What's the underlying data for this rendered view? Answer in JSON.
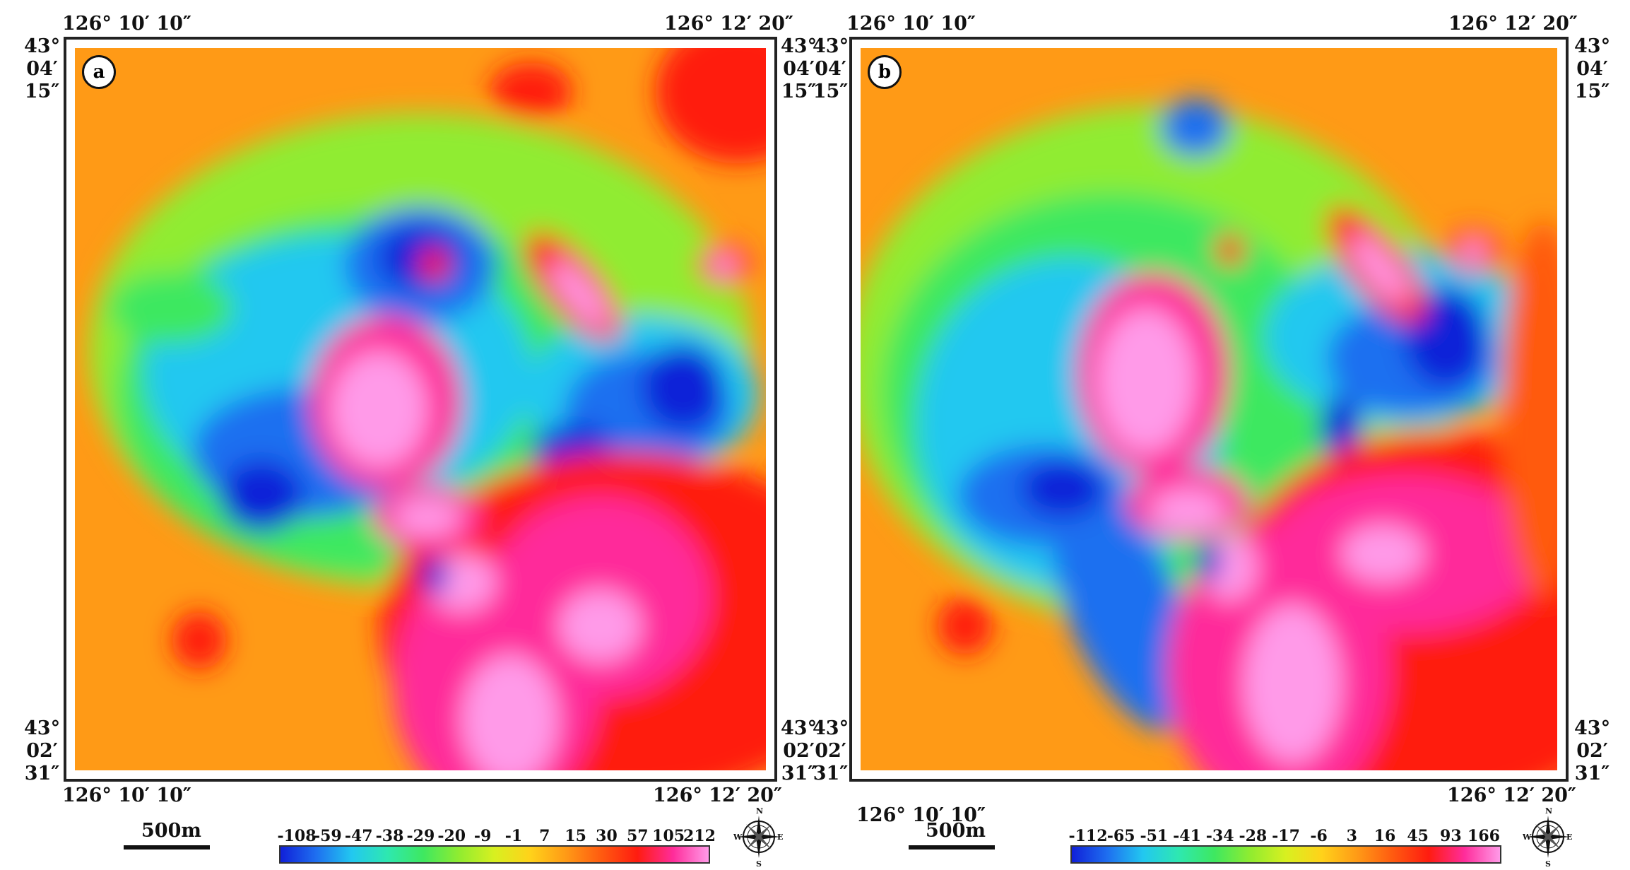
{
  "panels": [
    {
      "id": "a",
      "label": "a",
      "lon_left": "126° 10′ 10″",
      "lon_right": "126° 12′ 20″",
      "lat_top": [
        "43°",
        "04′",
        "15″"
      ],
      "lat_bottom": [
        "43°",
        "02′",
        "31″"
      ],
      "scale_label": "500m",
      "colorbar_ticks": [
        "-108",
        "-59",
        "-47",
        "-38",
        "-29",
        "-20",
        "-9",
        "-1",
        "7",
        "15",
        "30",
        "57",
        "105",
        "212"
      ]
    },
    {
      "id": "b",
      "label": "b",
      "lon_left": "126° 10′ 10″",
      "lon_right": "126° 12′ 20″",
      "lat_top": [
        "43°",
        "04′",
        "15″"
      ],
      "lat_bottom": [
        "43°",
        "02′",
        "31″"
      ],
      "scale_label": "500m",
      "colorbar_ticks": [
        "-112",
        "-65",
        "-51",
        "-41",
        "-34",
        "-28",
        "-17",
        "-6",
        "3",
        "16",
        "45",
        "93",
        "166"
      ]
    }
  ],
  "compass": {
    "n": "N",
    "s": "S",
    "e": "E",
    "w": "W"
  },
  "colors": {
    "ramp": [
      "#1020d8",
      "#1e6ff0",
      "#22c8f0",
      "#2ee8b0",
      "#3ee860",
      "#90ec30",
      "#d8f020",
      "#ffd21a",
      "#ff9a16",
      "#ff5a10",
      "#ff1c10",
      "#ff2c9a",
      "#ff9ae8"
    ],
    "frame": "#222222"
  }
}
